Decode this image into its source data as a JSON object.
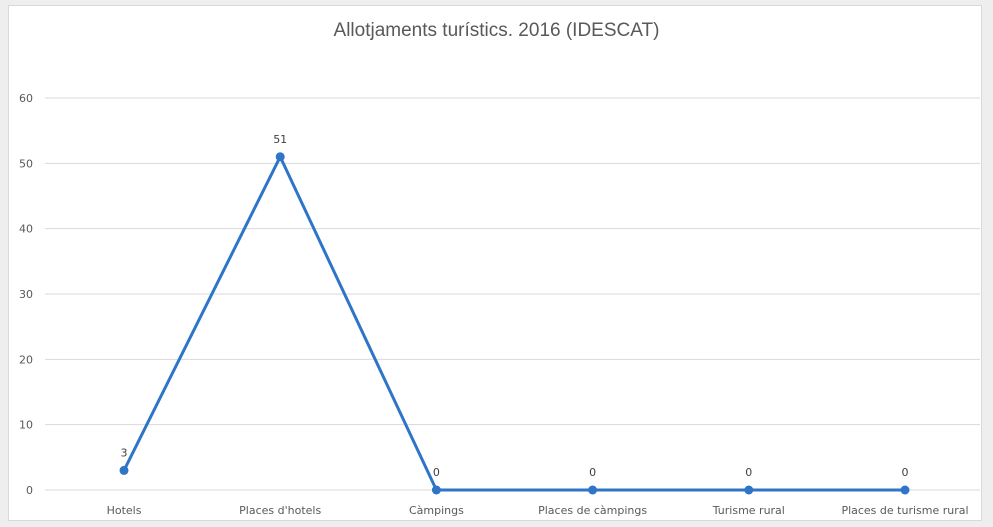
{
  "chart_data": {
    "type": "line",
    "title": "Allotjaments turístics. 2016 (IDESCAT)",
    "categories": [
      "Hotels",
      "Places d'hotels",
      "Càmpings",
      "Places de càmpings",
      "Turisme rural",
      "Places de turisme rural"
    ],
    "series": [
      {
        "values": [
          3,
          51,
          0,
          0,
          0,
          0
        ],
        "color": "#2e75c7"
      }
    ],
    "data_labels": [
      "3",
      "51",
      "0",
      "0",
      "0",
      "0"
    ],
    "ylim": [
      0,
      60
    ],
    "yticks": [
      0,
      10,
      20,
      30,
      40,
      50,
      60
    ],
    "grid": true,
    "legend": "none",
    "colors": {
      "gridline": "#d9d9d9",
      "axis_text": "#595959"
    }
  }
}
